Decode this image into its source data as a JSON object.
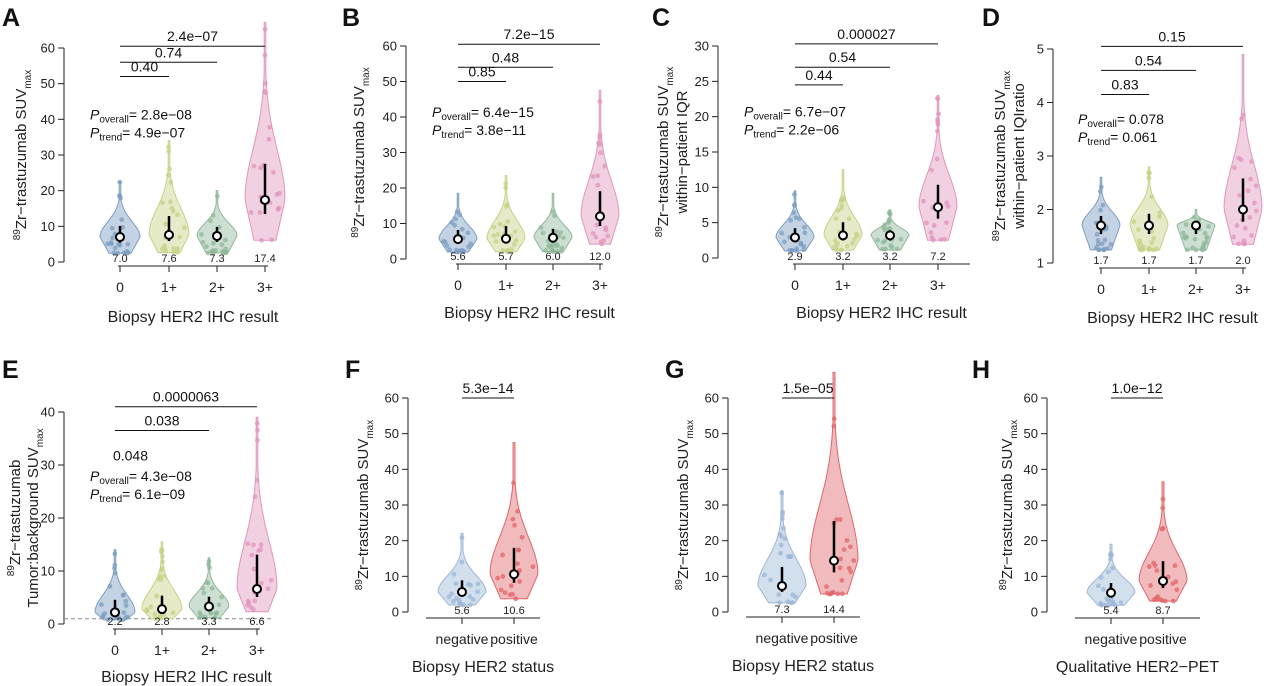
{
  "chart_data": [
    {
      "panel": "A",
      "type": "violin",
      "ylabel_pre": "89",
      "ylabel_main": "Zr−trastuzumab SUV",
      "ylabel_sub": "max",
      "ylabel_line2": "",
      "xlabel": "Biopsy HER2 IHC result",
      "ylim": [
        0,
        60
      ],
      "yticks": [
        0,
        10,
        20,
        30,
        40,
        50,
        60
      ],
      "categories": [
        "0",
        "1+",
        "2+",
        "3+"
      ],
      "medians": [
        7.0,
        7.6,
        7.3,
        17.4
      ],
      "median_labels": [
        "7.0",
        "7.6",
        "7.3",
        "17.4"
      ],
      "maxima": [
        22.5,
        34,
        20,
        68
      ],
      "colors": [
        "#7c9ec2",
        "#c7d186",
        "#8fb89a",
        "#e096bd"
      ],
      "comparisons": [
        {
          "from": 0,
          "to": 1,
          "label": "0.40",
          "y": 52
        },
        {
          "from": 0,
          "to": 2,
          "label": "0.74",
          "y": 56
        },
        {
          "from": 0,
          "to": 3,
          "label": "2.4e−07",
          "y": 60.5
        }
      ],
      "p_overall": "= 2.8e−08",
      "p_trend": "= 4.9e−07",
      "p_overall_sub": "overall",
      "p_trend_sub": "trend",
      "p_symbol": "P",
      "stat_y": 40
    },
    {
      "panel": "B",
      "type": "violin",
      "ylabel_pre": "89",
      "ylabel_main": "Zr−trastuzumab SUV",
      "ylabel_sub": "max",
      "ylabel_line2": "",
      "xlabel": "Biopsy HER2 IHC result",
      "ylim": [
        0,
        60
      ],
      "yticks": [
        0,
        10,
        20,
        30,
        40,
        50,
        60
      ],
      "categories": [
        "0",
        "1+",
        "2+",
        "3+"
      ],
      "medians": [
        5.6,
        5.7,
        6.0,
        12.0
      ],
      "median_labels": [
        "5.6",
        "5.7",
        "6.0",
        "12.0"
      ],
      "maxima": [
        18.5,
        23.5,
        18.5,
        47.5
      ],
      "colors": [
        "#7c9ec2",
        "#c7d186",
        "#8fb89a",
        "#e096bd"
      ],
      "comparisons": [
        {
          "from": 0,
          "to": 1,
          "label": "0.85",
          "y": 50
        },
        {
          "from": 0,
          "to": 2,
          "label": "0.48",
          "y": 54
        },
        {
          "from": 0,
          "to": 3,
          "label": "7.2e−15",
          "y": 60.5
        }
      ],
      "p_overall": "= 6.4e−15",
      "p_trend": "= 3.8e−11",
      "p_overall_sub": "overall",
      "p_trend_sub": "trend",
      "p_symbol": "P",
      "stat_y": 40
    },
    {
      "panel": "C",
      "type": "violin",
      "ylabel_pre": "89",
      "ylabel_main": "Zr−trastuzumab SUV",
      "ylabel_sub": "max",
      "ylabel_line2": "within−patient IQR",
      "xlabel": "Biopsy HER2 IHC result",
      "ylim": [
        0,
        30
      ],
      "yticks": [
        0,
        5,
        10,
        15,
        20,
        25,
        30
      ],
      "categories": [
        "0",
        "1+",
        "2+",
        "3+"
      ],
      "medians": [
        2.9,
        3.2,
        3.2,
        7.2
      ],
      "median_labels": [
        "2.9",
        "3.2",
        "3.2",
        "7.2"
      ],
      "maxima": [
        9.5,
        12.5,
        6.8,
        23
      ],
      "colors": [
        "#7c9ec2",
        "#c7d186",
        "#8fb89a",
        "#e096bd"
      ],
      "comparisons": [
        {
          "from": 0,
          "to": 1,
          "label": "0.44",
          "y": 24.5
        },
        {
          "from": 0,
          "to": 2,
          "label": "0.54",
          "y": 27
        },
        {
          "from": 0,
          "to": 3,
          "label": "0.000027",
          "y": 30.3
        }
      ],
      "p_overall": "= 6.7e−07",
      "p_trend": "= 2.2e−06",
      "p_overall_sub": "overall",
      "p_trend_sub": "trend",
      "p_symbol": "P",
      "stat_y": 20
    },
    {
      "panel": "D",
      "type": "violin",
      "ylabel_pre": "89",
      "ylabel_main": "Zr−trastuzumab SUV",
      "ylabel_sub": "max",
      "ylabel_line2": "within−patient IQIratio",
      "xlabel": "Biopsy HER2 IHC result",
      "ylim": [
        1,
        5
      ],
      "yticks": [
        1,
        2,
        3,
        4,
        5
      ],
      "categories": [
        "0",
        "1+",
        "2+",
        "3+"
      ],
      "medians": [
        1.7,
        1.7,
        1.7,
        2.0
      ],
      "median_labels": [
        "1.7",
        "1.7",
        "1.7",
        "2.0"
      ],
      "maxima": [
        2.6,
        2.8,
        2.0,
        4.9
      ],
      "colors": [
        "#7c9ec2",
        "#c7d186",
        "#8fb89a",
        "#e096bd"
      ],
      "comparisons": [
        {
          "from": 0,
          "to": 1,
          "label": "0.83",
          "y": 4.15
        },
        {
          "from": 0,
          "to": 2,
          "label": "0.54",
          "y": 4.6
        },
        {
          "from": 0,
          "to": 3,
          "label": "0.15",
          "y": 5.05
        }
      ],
      "p_overall": "= 0.078",
      "p_trend": "= 0.061",
      "p_overall_sub": "overall",
      "p_trend_sub": "trend",
      "p_symbol": "P",
      "stat_y": 3.6
    },
    {
      "panel": "E",
      "type": "violin",
      "ylabel_pre": "89",
      "ylabel_main": "Zr−trastuzumab",
      "ylabel_sub": "max",
      "ylabel_line2": "Tumor:background SUV",
      "xlabel": "Biopsy HER2 IHC result",
      "ylim": [
        0,
        40
      ],
      "yticks": [
        0,
        10,
        20,
        30,
        40
      ],
      "categories": [
        "0",
        "1+",
        "2+",
        "3+"
      ],
      "medians": [
        2.2,
        2.8,
        3.3,
        6.6
      ],
      "median_labels": [
        "2.2",
        "2.8",
        "3.3",
        "6.6"
      ],
      "maxima": [
        14,
        15.5,
        12.5,
        39
      ],
      "colors": [
        "#7c9ec2",
        "#c7d186",
        "#8fb89a",
        "#e096bd"
      ],
      "reference_line": 1,
      "comparisons": [
        {
          "from": 0,
          "to": 2,
          "label": "0.038",
          "y": 36.5
        },
        {
          "from": 0,
          "to": 3,
          "label": "0.0000063",
          "y": 41
        }
      ],
      "extra_label": {
        "label": "0.048",
        "y": 33.5
      },
      "p_overall": "= 4.3e−08",
      "p_trend": "= 6.1e−09",
      "p_overall_sub": "overall",
      "p_trend_sub": "trend",
      "p_symbol": "P",
      "stat_y": 27
    },
    {
      "panel": "F",
      "type": "violin",
      "ylabel_pre": "89",
      "ylabel_main": "Zr−trastuzumab SUV",
      "ylabel_sub": "max",
      "ylabel_line2": "",
      "xlabel": "Biopsy HER2 status",
      "ylim": [
        0,
        60
      ],
      "yticks": [
        0,
        10,
        20,
        30,
        40,
        50,
        60
      ],
      "categories": [
        "negative",
        "positive"
      ],
      "medians": [
        5.6,
        10.6
      ],
      "median_labels": [
        "5.6",
        "10.6"
      ],
      "maxima": [
        22,
        47.5
      ],
      "colors": [
        "#9cb7d6",
        "#e0666b"
      ],
      "comparisons": [
        {
          "from": 0,
          "to": 1,
          "label": "5.3e−14",
          "y": 60
        }
      ]
    },
    {
      "panel": "G",
      "type": "violin",
      "ylabel_pre": "89",
      "ylabel_main": "Zr−trastuzumab SUV",
      "ylabel_sub": "max",
      "ylabel_line2": "",
      "xlabel": "Biopsy HER2 status",
      "ylim": [
        0,
        60
      ],
      "yticks": [
        0,
        10,
        20,
        30,
        40,
        50,
        60
      ],
      "categories": [
        "negative",
        "positive"
      ],
      "medians": [
        7.3,
        14.4
      ],
      "median_labels": [
        "7.3",
        "14.4"
      ],
      "maxima": [
        34,
        70
      ],
      "colors": [
        "#9cb7d6",
        "#e0666b"
      ],
      "comparisons": [
        {
          "from": 0,
          "to": 1,
          "label": "1.5e−05",
          "y": 60
        }
      ]
    },
    {
      "panel": "H",
      "type": "violin",
      "ylabel_pre": "89",
      "ylabel_main": "Zr−trastuzumab SUV",
      "ylabel_sub": "max",
      "ylabel_line2": "",
      "xlabel": "Qualitative HER2−PET",
      "ylim": [
        0,
        60
      ],
      "yticks": [
        0,
        10,
        20,
        30,
        40,
        50,
        60
      ],
      "categories": [
        "negative",
        "positive"
      ],
      "medians": [
        5.4,
        8.7
      ],
      "median_labels": [
        "5.4",
        "8.7"
      ],
      "maxima": [
        19,
        36.5
      ],
      "colors": [
        "#9cb7d6",
        "#e0666b"
      ],
      "comparisons": [
        {
          "from": 0,
          "to": 1,
          "label": "1.0e−12",
          "y": 60
        }
      ]
    }
  ]
}
